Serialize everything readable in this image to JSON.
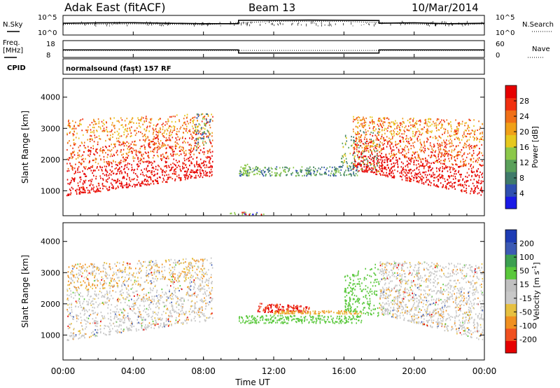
{
  "header": {
    "station": "Adak East (fitACF)",
    "beam": "Beam 13",
    "date": "10/Mar/2014"
  },
  "labels": {
    "nsky": "N.Sky",
    "nsearch": "N.Search",
    "freq_line1": "Freq.",
    "freq_line2": "[MHz]",
    "nave": "Nave",
    "cpid": "CPID",
    "cpid_value": "normalsound (fast) 157 RF",
    "noise_tick_top_left": "10^5",
    "noise_tick_bottom_left": "10^0",
    "noise_tick_top_right": "10^5",
    "noise_tick_bottom_right": "10^0",
    "freq_tick_top": "18",
    "freq_tick_bottom": "8",
    "nave_tick_top": "60",
    "nave_tick_bottom": "0"
  },
  "colors": {
    "power_scale": [
      "#1a1ae6",
      "#2f4fb0",
      "#3f7a6a",
      "#5aa05a",
      "#8cc84a",
      "#e6c81e",
      "#f0a018",
      "#f07018",
      "#f03010",
      "#e60000"
    ],
    "velocity_scale": [
      "#e60000",
      "#f05020",
      "#f09020",
      "#e6c040",
      "#c8c8c8",
      "#c0c0c0",
      "#5ac83c",
      "#3ca050",
      "#3c5ab4",
      "#1e3cb4"
    ]
  },
  "chart_data": [
    {
      "type": "line",
      "title": "",
      "series": [
        {
          "name": "N.Sky",
          "x": [
            "00:00",
            "02:00",
            "04:00",
            "06:00",
            "08:00",
            "10:00",
            "10:00",
            "12:00",
            "14:00",
            "16:00",
            "18:00",
            "18:00",
            "20:00",
            "22:00",
            "24:00"
          ],
          "values": [
            0.6,
            0.62,
            0.63,
            0.6,
            0.58,
            0.58,
            0.75,
            0.75,
            0.76,
            0.75,
            0.74,
            0.6,
            0.62,
            0.58,
            0.6
          ]
        },
        {
          "name": "N.Search",
          "x": [
            "00:00",
            "04:00",
            "08:00",
            "12:00",
            "16:00",
            "20:00",
            "24:00"
          ],
          "values": [
            0.55,
            0.57,
            0.53,
            0.7,
            0.7,
            0.56,
            0.55
          ]
        }
      ],
      "ylabel": "N.Sky / N.Search",
      "xlim": [
        "00:00",
        "24:00"
      ]
    },
    {
      "type": "line",
      "series": [
        {
          "name": "Freq.",
          "x": [
            "00:00",
            "10:00",
            "10:00",
            "18:00",
            "18:00",
            "24:00"
          ],
          "values": [
            12.5,
            12.5,
            10.6,
            10.6,
            12.5,
            12.5
          ]
        },
        {
          "name": "Nave",
          "x": [
            "00:00",
            "24:00"
          ],
          "values": [
            13,
            13
          ]
        }
      ],
      "ylim": [
        8,
        18
      ]
    },
    {
      "type": "heatmap",
      "quantity": "Power [dB]",
      "ylabel": "Slant Range [km]",
      "ylim": [
        200,
        4600
      ],
      "yticks": [
        1000,
        2000,
        3000,
        4000
      ],
      "colorbar": {
        "label": "Power [dB]",
        "ticks": [
          4,
          8,
          12,
          16,
          20,
          24,
          28
        ]
      },
      "regions": [
        {
          "t_start": "00:00",
          "t_end": "08:30",
          "range_low": 800,
          "range_high": 3300,
          "level": "strong",
          "note": "dense scatter, range rising toward 08:00"
        },
        {
          "t_start": "10:00",
          "t_end": "17:00",
          "range_low": 1500,
          "range_high": 1900,
          "level": "weak"
        },
        {
          "t_start": "16:00",
          "t_end": "24:00",
          "range_low": 850,
          "range_high": 3300,
          "level": "strong"
        }
      ]
    },
    {
      "type": "heatmap",
      "quantity": "Velocity [m s^-1]",
      "ylabel": "Slant Range [km]",
      "xlabel": "Time UT",
      "ylim": [
        200,
        4600
      ],
      "yticks": [
        1000,
        2000,
        3000,
        4000
      ],
      "xticks": [
        "00:00",
        "04:00",
        "08:00",
        "12:00",
        "16:00",
        "20:00",
        "00:00"
      ],
      "colorbar": {
        "label": "Velocity [m s^-1]",
        "ticks": [
          200,
          100,
          50,
          15,
          -15,
          -50,
          -100,
          -200
        ]
      },
      "regions": [
        {
          "t_start": "00:00",
          "t_end": "08:30",
          "range_low": 800,
          "range_high": 3300,
          "velocity": "near zero / ground scatter"
        },
        {
          "t_start": "11:00",
          "t_end": "14:00",
          "range_low": 1700,
          "range_high": 2100,
          "velocity": -200
        },
        {
          "t_start": "10:00",
          "t_end": "17:00",
          "range_low": 1500,
          "range_high": 1700,
          "velocity": 30
        },
        {
          "t_start": "16:00",
          "t_end": "18:00",
          "range_low": 1800,
          "range_high": 3400,
          "velocity": 30
        },
        {
          "t_start": "18:00",
          "t_end": "24:00",
          "range_low": 850,
          "range_high": 3300,
          "velocity": "near zero / ground scatter"
        }
      ]
    }
  ],
  "axis_text": {
    "slant_range": "Slant Range [km]",
    "power": "Power [dB]",
    "velocity": "Velocity [m s",
    "velocity_exp": "-1",
    "velocity_close": "]",
    "time_ut": "Time UT"
  }
}
